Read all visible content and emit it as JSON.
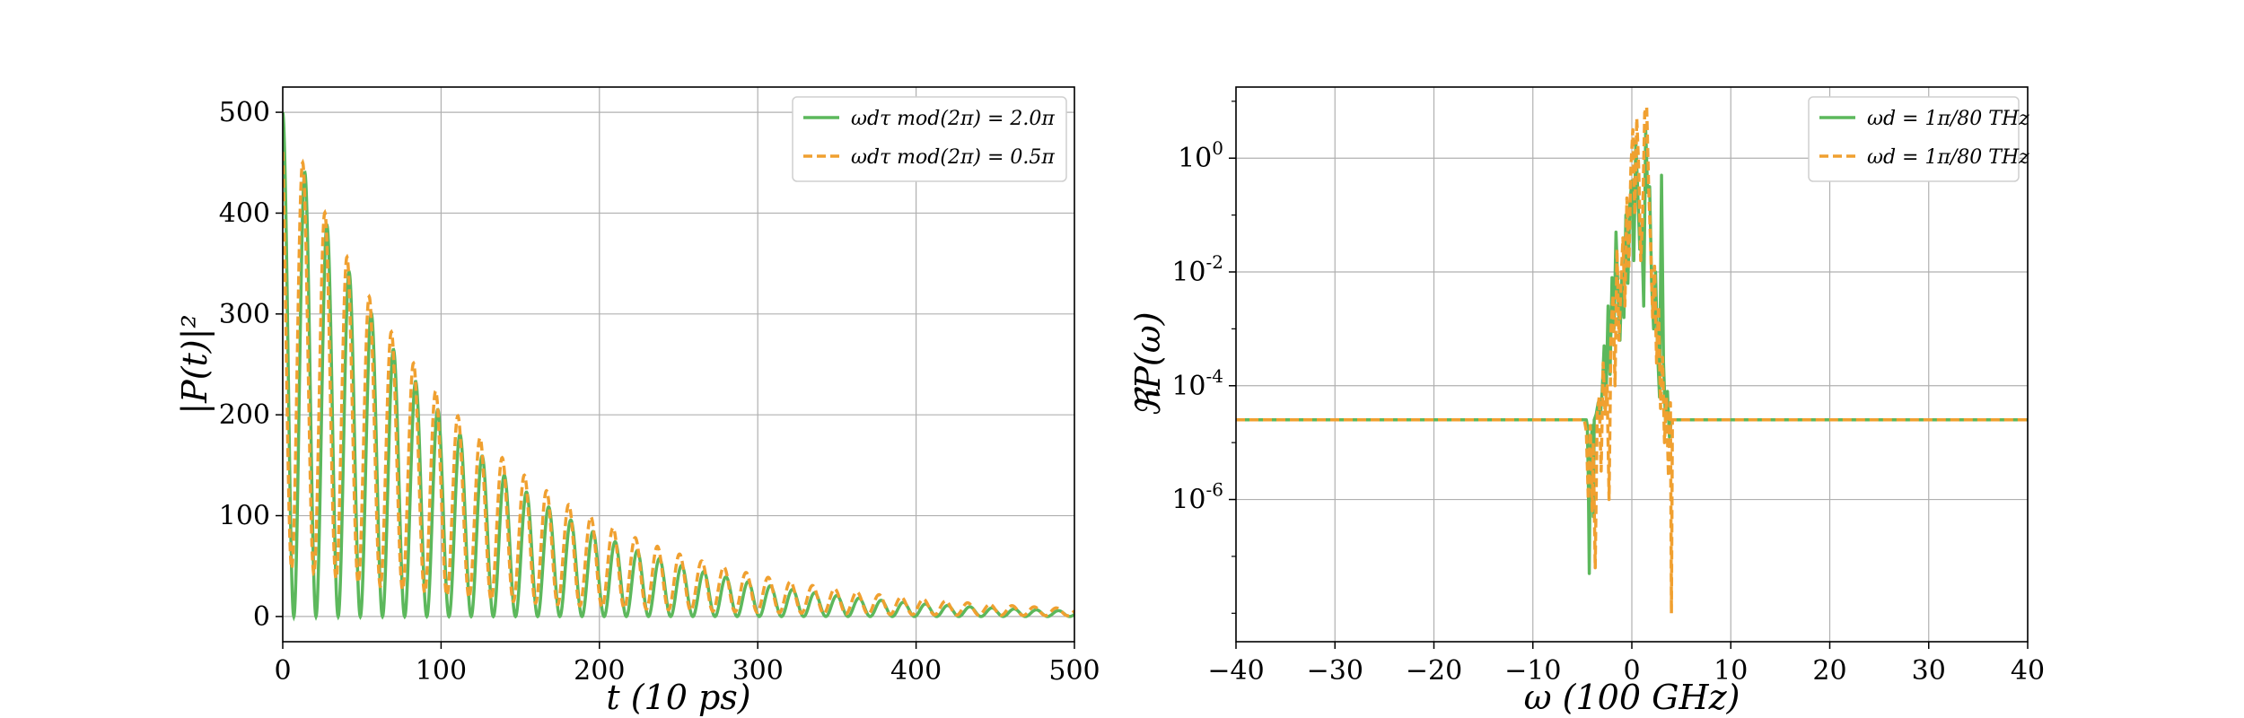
{
  "chart_data": [
    {
      "type": "line",
      "xlabel": "t (10 ps)",
      "ylabel": "|P(t)|²",
      "xlim": [
        0,
        500
      ],
      "ylim": [
        -25,
        525
      ],
      "xticks": [
        0,
        100,
        200,
        300,
        400,
        500
      ],
      "yticks": [
        0,
        100,
        200,
        300,
        400,
        500
      ],
      "grid": true,
      "legend_position": "top-right",
      "series": [
        {
          "name": "ωdτ mod(2π) = 2.0π",
          "color": "#5cb85c",
          "dash": "solid",
          "envelope_start": 500,
          "decay_time": 110,
          "period": 14
        },
        {
          "name": "ωdτ mod(2π) = 0.5π",
          "color": "#f0a030",
          "dash": "dashed",
          "envelope_start": 500,
          "decay_time": 120,
          "period": 14
        }
      ]
    },
    {
      "type": "line",
      "xlabel": "ω (100 GHz)",
      "ylabel": "ℜP(ω)",
      "xlim": [
        -40,
        40
      ],
      "ylog": true,
      "ylim_exp": [
        -8.5,
        1.25
      ],
      "xticks": [
        -40,
        -30,
        -20,
        -10,
        0,
        10,
        20,
        30,
        40
      ],
      "ytick_exps": [
        0,
        -2,
        -4,
        -6
      ],
      "grid": true,
      "legend_position": "top-right",
      "baseline_exp": -4.6,
      "series": [
        {
          "name": "ωd = 1π/80 THz",
          "color": "#5cb85c",
          "dash": "solid",
          "points": [
            [
              -40,
              -4.6
            ],
            [
              -4.6,
              -4.6
            ],
            [
              -4.5,
              -4.7
            ],
            [
              -4.4,
              -5.6
            ],
            [
              -4.3,
              -7.3
            ],
            [
              -4.2,
              -5.2
            ],
            [
              -4.0,
              -4.7
            ],
            [
              -3.9,
              -6.3
            ],
            [
              -3.8,
              -4.6
            ],
            [
              -3.6,
              -4.5
            ],
            [
              -3.4,
              -4.3
            ],
            [
              -3.2,
              -4.6
            ],
            [
              -3.0,
              -4.1
            ],
            [
              -2.8,
              -3.3
            ],
            [
              -2.6,
              -4.2
            ],
            [
              -2.4,
              -2.6
            ],
            [
              -2.2,
              -3.8
            ],
            [
              -2.0,
              -2.1
            ],
            [
              -1.8,
              -3.0
            ],
            [
              -1.6,
              -1.3
            ],
            [
              -1.4,
              -2.3
            ],
            [
              -1.2,
              -3.2
            ],
            [
              -1.0,
              -2.0
            ],
            [
              -0.8,
              -2.8
            ],
            [
              -0.6,
              -1.0
            ],
            [
              -0.4,
              -2.2
            ],
            [
              -0.2,
              -0.8
            ],
            [
              0.0,
              -0.4
            ],
            [
              0.2,
              -1.8
            ],
            [
              0.4,
              0.3
            ],
            [
              0.6,
              -0.6
            ],
            [
              0.8,
              -1.6
            ],
            [
              1.0,
              -1.2
            ],
            [
              1.2,
              -2.6
            ],
            [
              1.4,
              0.5
            ],
            [
              1.6,
              -0.6
            ],
            [
              1.8,
              -0.5
            ],
            [
              2.0,
              -2.2
            ],
            [
              2.2,
              -3.0
            ],
            [
              2.4,
              -2.0
            ],
            [
              2.6,
              -3.4
            ],
            [
              2.8,
              -4.2
            ],
            [
              3.0,
              -0.3
            ],
            [
              3.2,
              -3.6
            ],
            [
              3.4,
              -4.6
            ],
            [
              3.6,
              -4.1
            ],
            [
              3.8,
              -4.9
            ],
            [
              4.0,
              -4.6
            ],
            [
              40,
              -4.6
            ]
          ]
        },
        {
          "name": "ωd = 1π/80 THz",
          "color": "#f0a030",
          "dash": "dashed",
          "points": [
            [
              -40,
              -4.6
            ],
            [
              -4.8,
              -4.6
            ],
            [
              -4.6,
              -4.8
            ],
            [
              -4.4,
              -6.0
            ],
            [
              -4.2,
              -4.7
            ],
            [
              -4.0,
              -6.2
            ],
            [
              -3.9,
              -5.0
            ],
            [
              -3.7,
              -7.2
            ],
            [
              -3.5,
              -4.5
            ],
            [
              -3.3,
              -4.2
            ],
            [
              -3.1,
              -5.5
            ],
            [
              -2.9,
              -3.6
            ],
            [
              -2.7,
              -4.5
            ],
            [
              -2.5,
              -4.0
            ],
            [
              -2.3,
              -6.0
            ],
            [
              -2.1,
              -3.0
            ],
            [
              -1.9,
              -2.4
            ],
            [
              -1.7,
              -4.0
            ],
            [
              -1.5,
              -1.6
            ],
            [
              -1.3,
              -3.2
            ],
            [
              -1.1,
              -2.2
            ],
            [
              -0.9,
              -1.4
            ],
            [
              -0.7,
              -2.6
            ],
            [
              -0.5,
              -0.7
            ],
            [
              -0.3,
              -1.9
            ],
            [
              -0.1,
              -0.2
            ],
            [
              0.1,
              0.5
            ],
            [
              0.3,
              -1.0
            ],
            [
              0.5,
              0.7
            ],
            [
              0.7,
              -0.2
            ],
            [
              0.9,
              -1.8
            ],
            [
              1.1,
              -1.0
            ],
            [
              1.3,
              0.8
            ],
            [
              1.5,
              0.9
            ],
            [
              1.7,
              -0.5
            ],
            [
              1.9,
              -1.5
            ],
            [
              2.1,
              -2.8
            ],
            [
              2.3,
              -1.9
            ],
            [
              2.5,
              -3.6
            ],
            [
              2.7,
              -2.6
            ],
            [
              2.9,
              -4.4
            ],
            [
              3.1,
              -3.5
            ],
            [
              3.3,
              -5.0
            ],
            [
              3.5,
              -4.2
            ],
            [
              3.7,
              -5.6
            ],
            [
              3.9,
              -4.3
            ],
            [
              4.0,
              -8.0
            ],
            [
              4.1,
              -4.6
            ],
            [
              40,
              -4.6
            ]
          ]
        }
      ]
    }
  ]
}
